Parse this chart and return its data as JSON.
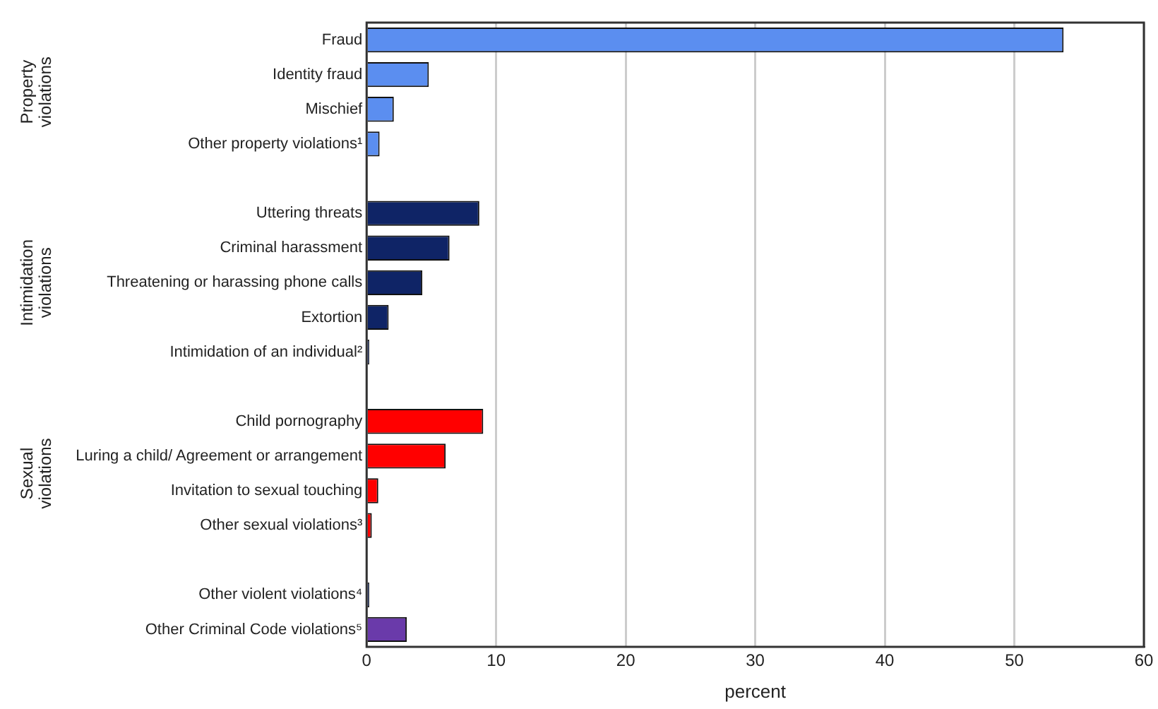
{
  "chart_data": {
    "type": "bar",
    "orientation": "horizontal",
    "xlabel": "percent",
    "categories": [
      "Fraud",
      "Identity fraud",
      "Mischief",
      "Other property violations¹",
      null,
      "Uttering threats",
      "Criminal harassment",
      "Threatening or harassing phone calls",
      "Extortion",
      "Intimidation of an individual²",
      null,
      "Child pornography",
      "Luring a child/ Agreement or arrangement",
      "Invitation to sexual touching",
      "Other sexual violations³",
      null,
      "Other violent violations⁴",
      "Other Criminal Code violations⁵"
    ],
    "values": [
      53.8,
      4.8,
      2.1,
      1.0,
      null,
      8.7,
      6.4,
      4.3,
      1.7,
      0.2,
      null,
      9.0,
      6.1,
      0.9,
      0.4,
      null,
      0.2,
      3.1
    ],
    "colors": [
      "#5b8ef0",
      "#5b8ef0",
      "#5b8ef0",
      "#5b8ef0",
      null,
      "#0f2466",
      "#0f2466",
      "#0f2466",
      "#0f2466",
      "#0f2466",
      null,
      "#ff0000",
      "#ff0000",
      "#ff0000",
      "#ff0000",
      null,
      "#0f2466",
      "#6a3aaa"
    ],
    "xlim": [
      0,
      60
    ],
    "xticks": [
      0,
      10,
      20,
      30,
      40,
      50,
      60
    ],
    "grid": "x",
    "legend": false,
    "annotations": [
      "Property violations",
      "Intimidation violations",
      "Sexual violations"
    ]
  }
}
